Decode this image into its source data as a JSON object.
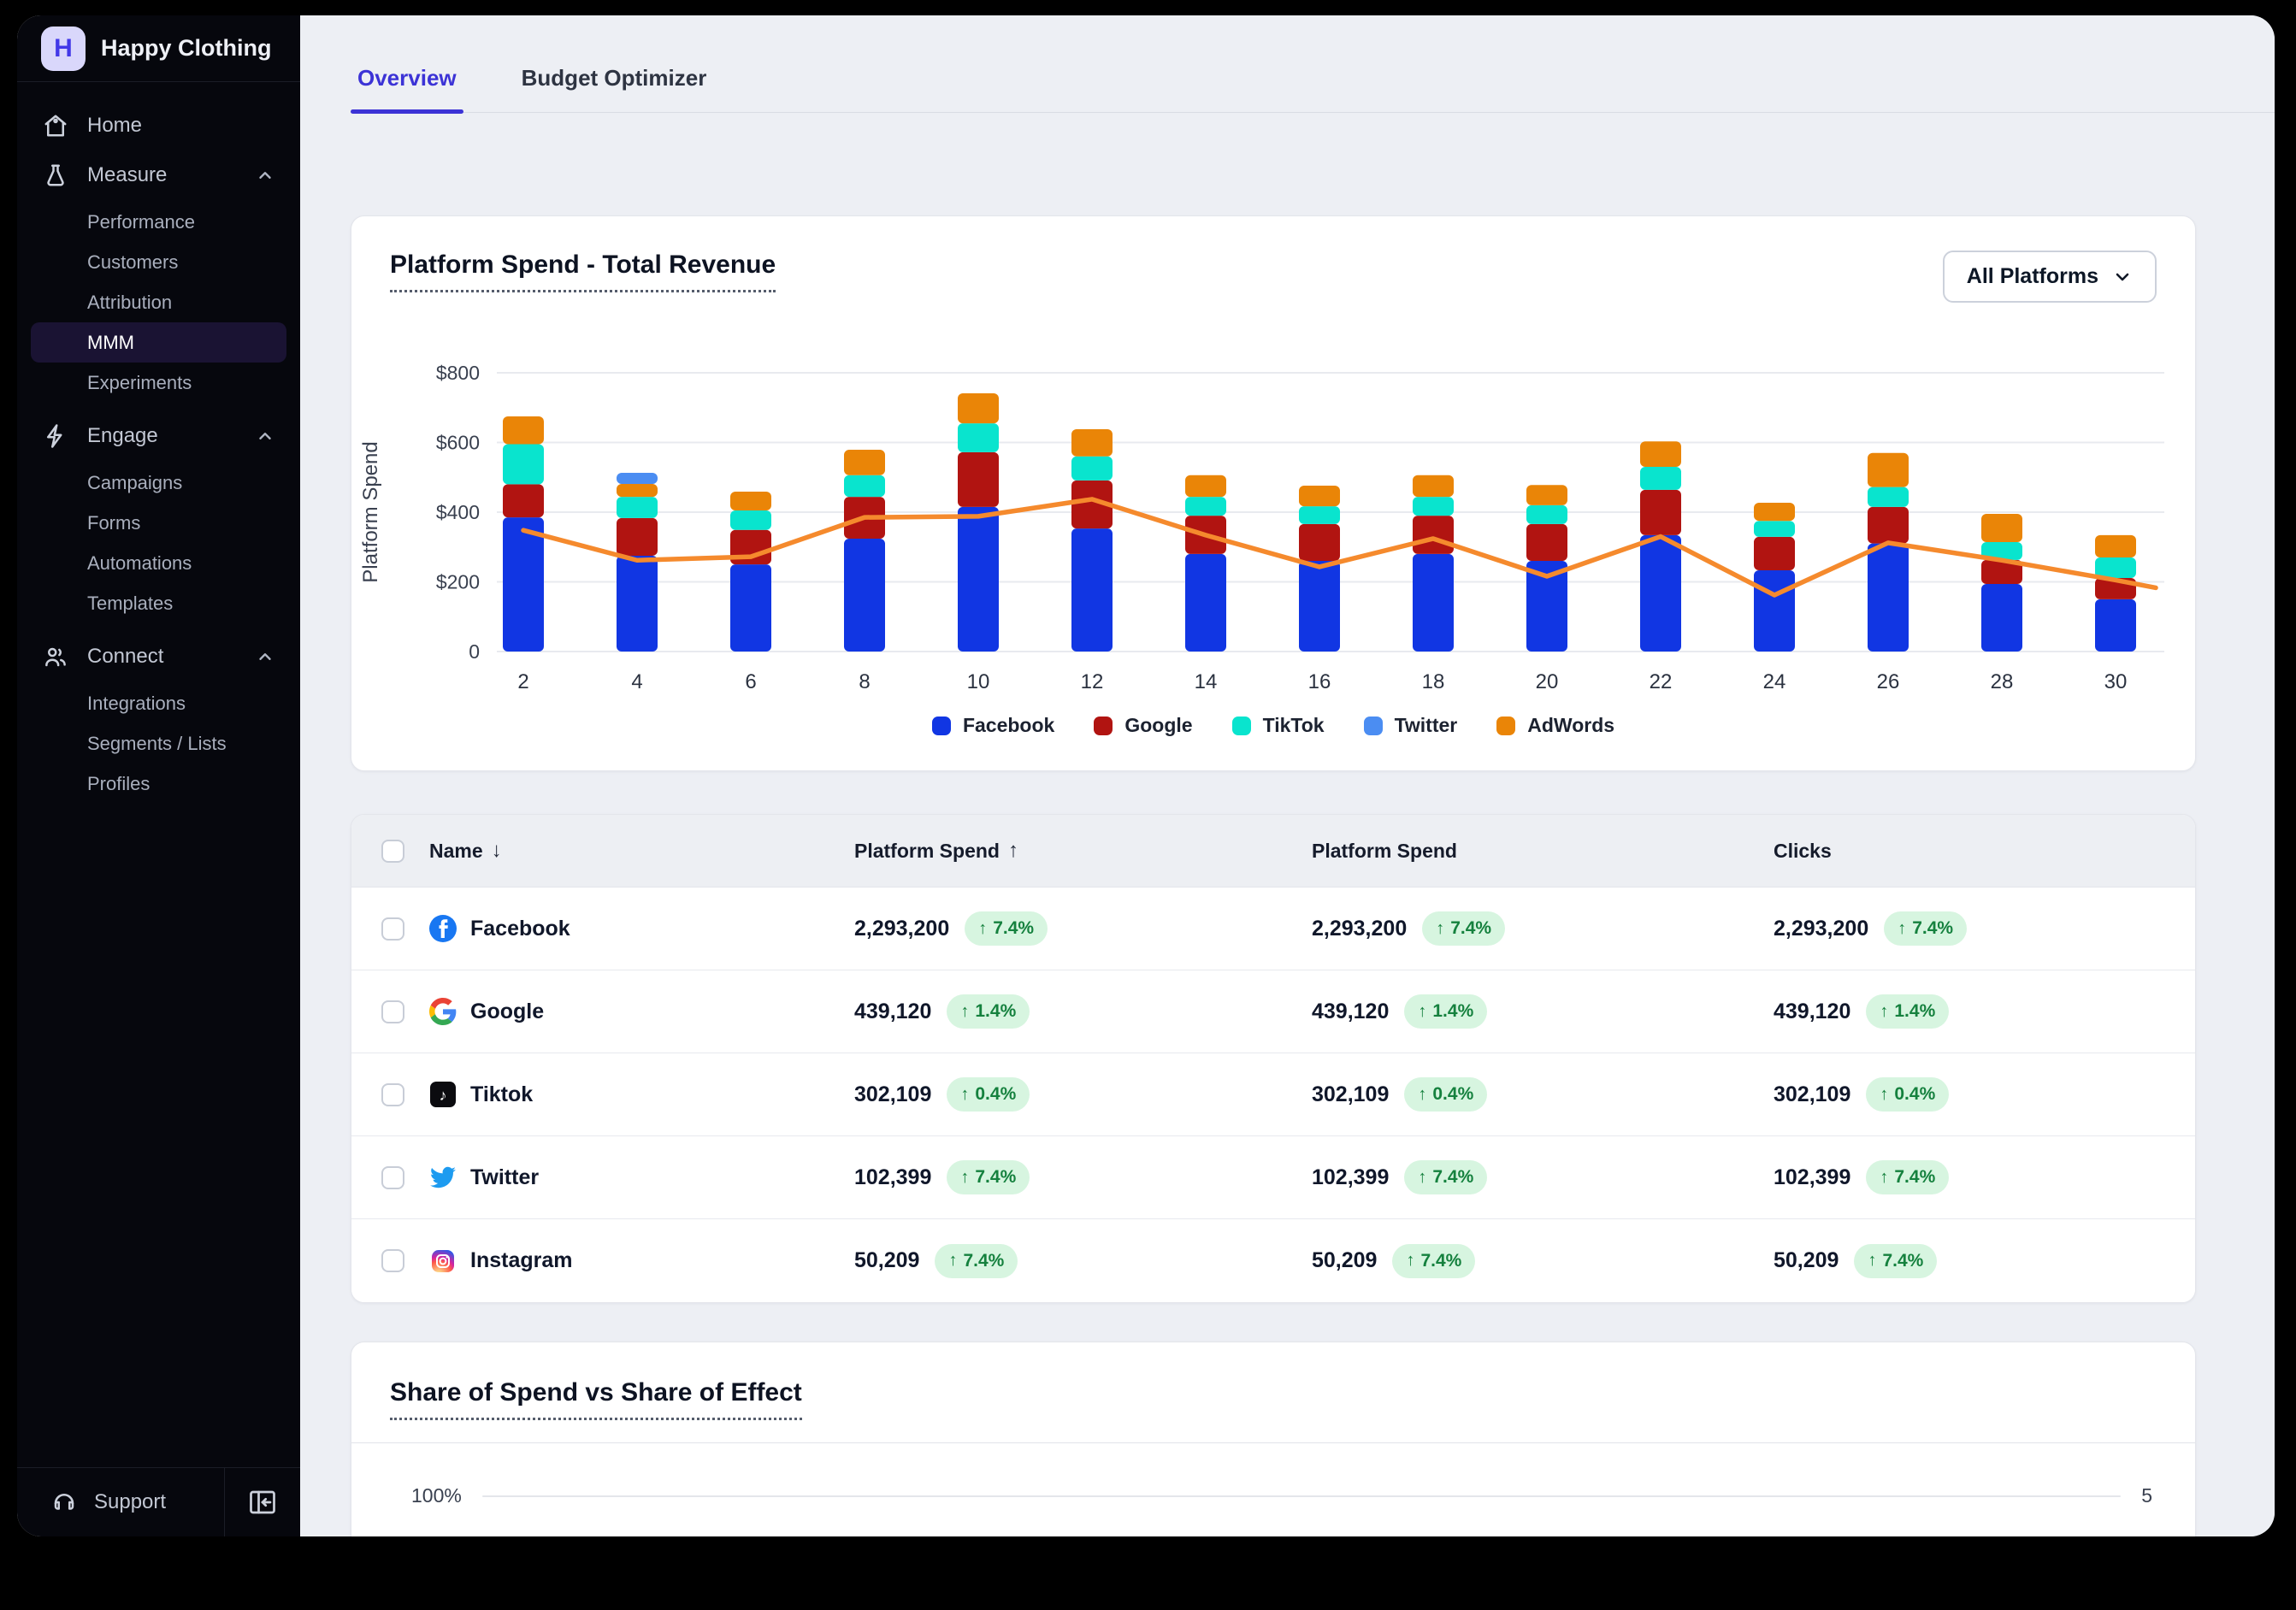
{
  "brand": {
    "initial": "H",
    "name": "Happy Clothing"
  },
  "sidebar": {
    "items": [
      {
        "label": "Home"
      },
      {
        "label": "Measure",
        "children": [
          "Performance",
          "Customers",
          "Attribution",
          "MMM",
          "Experiments"
        ],
        "active_child": "MMM"
      },
      {
        "label": "Engage",
        "children": [
          "Campaigns",
          "Forms",
          "Automations",
          "Templates"
        ]
      },
      {
        "label": "Connect",
        "children": [
          "Integrations",
          "Segments / Lists",
          "Profiles"
        ]
      }
    ],
    "support_label": "Support"
  },
  "tabs": [
    {
      "label": "Overview",
      "active": true
    },
    {
      "label": "Budget Optimizer",
      "active": false
    }
  ],
  "spend_card": {
    "title": "Platform Spend - Total Revenue",
    "filter_label": "All Platforms"
  },
  "chart_data": [
    {
      "type": "bar",
      "stacked": true,
      "title": "Platform Spend - Total Revenue",
      "ylabel": "Platform Spend",
      "ylim": [
        0,
        800
      ],
      "ytick_values": [
        0,
        200,
        400,
        600,
        800
      ],
      "ytick_labels": [
        "0",
        "$200",
        "$400",
        "$600",
        "$800"
      ],
      "grid": true,
      "legend_position": "bottom",
      "categories": [
        2,
        4,
        6,
        8,
        10,
        12,
        14,
        16,
        18,
        20,
        22,
        24,
        26,
        28,
        30
      ],
      "series": [
        {
          "name": "Facebook",
          "color": "#1136e3",
          "values": [
            385,
            275,
            250,
            324,
            415,
            353,
            280,
            260,
            280,
            260,
            334,
            233,
            310,
            194,
            150
          ]
        },
        {
          "name": "Google",
          "color": "#b11411",
          "values": [
            95,
            108,
            99,
            120,
            157,
            138,
            110,
            106,
            110,
            106,
            130,
            96,
            105,
            69,
            61
          ]
        },
        {
          "name": "TikTok",
          "color": "#09e4ce",
          "values": [
            115,
            61,
            56,
            62,
            83,
            69,
            54,
            51,
            54,
            54,
            66,
            46,
            57,
            51,
            59
          ]
        },
        {
          "name": "AdWords",
          "color": "#ea8507",
          "values": [
            80,
            37,
            54,
            73,
            86,
            78,
            62,
            59,
            62,
            58,
            73,
            52,
            98,
            81,
            64
          ]
        },
        {
          "name": "Twitter",
          "color": "#4b8df2",
          "values": [
            0,
            32,
            0,
            0,
            0,
            0,
            0,
            0,
            0,
            0,
            0,
            0,
            0,
            0,
            0
          ]
        }
      ],
      "legend": [
        {
          "label": "Facebook",
          "color": "#1136e3"
        },
        {
          "label": "Google",
          "color": "#b11411"
        },
        {
          "label": "TikTok",
          "color": "#09e4ce"
        },
        {
          "label": "Twitter",
          "color": "#4b8df2"
        },
        {
          "label": "AdWords",
          "color": "#ea8507"
        }
      ],
      "line_overlay": {
        "name": "Total Revenue",
        "color": "#f58a2d",
        "values": [
          348,
          262,
          272,
          385,
          388,
          437,
          334,
          243,
          324,
          216,
          330,
          162,
          312,
          262,
          205
        ],
        "tail_value": 183
      }
    },
    {
      "type": "bar",
      "title": "Share of Spend vs Share of Effect",
      "visible_ytick": "100%",
      "visible_right_label": "5",
      "note": "chart cut off at bottom of viewport"
    }
  ],
  "table": {
    "columns": [
      {
        "label": "Name",
        "sort": "desc"
      },
      {
        "label": "Platform Spend",
        "sort": "asc"
      },
      {
        "label": "Platform Spend",
        "sort": null
      },
      {
        "label": "Clicks",
        "sort": null
      }
    ],
    "rows": [
      {
        "name": "Facebook",
        "icon": "facebook-icon",
        "values": [
          "2,293,200",
          "2,293,200",
          "2,293,200"
        ],
        "delta": "7.4%",
        "direction": "up"
      },
      {
        "name": "Google",
        "icon": "google-icon",
        "values": [
          "439,120",
          "439,120",
          "439,120"
        ],
        "delta": "1.4%",
        "direction": "up"
      },
      {
        "name": "Tiktok",
        "icon": "tiktok-icon",
        "values": [
          "302,109",
          "302,109",
          "302,109"
        ],
        "delta": "0.4%",
        "direction": "up"
      },
      {
        "name": "Twitter",
        "icon": "twitter-icon",
        "values": [
          "102,399",
          "102,399",
          "102,399"
        ],
        "delta": "7.4%",
        "direction": "up"
      },
      {
        "name": "Instagram",
        "icon": "instagram-icon",
        "values": [
          "50,209",
          "50,209",
          "50,209"
        ],
        "delta": "7.4%",
        "direction": "up"
      }
    ],
    "badge_arrow": "↑"
  },
  "effect_card": {
    "title": "Share of Spend vs Share of Effect",
    "y_label": "100%",
    "right_label": "5"
  },
  "colors": {
    "accent": "#3c33d6",
    "sidebar_bg": "#06070d",
    "content_bg": "#edeff4",
    "badge_bg": "#d7f5e0",
    "badge_text": "#15813e",
    "line": "#f58a2d"
  }
}
